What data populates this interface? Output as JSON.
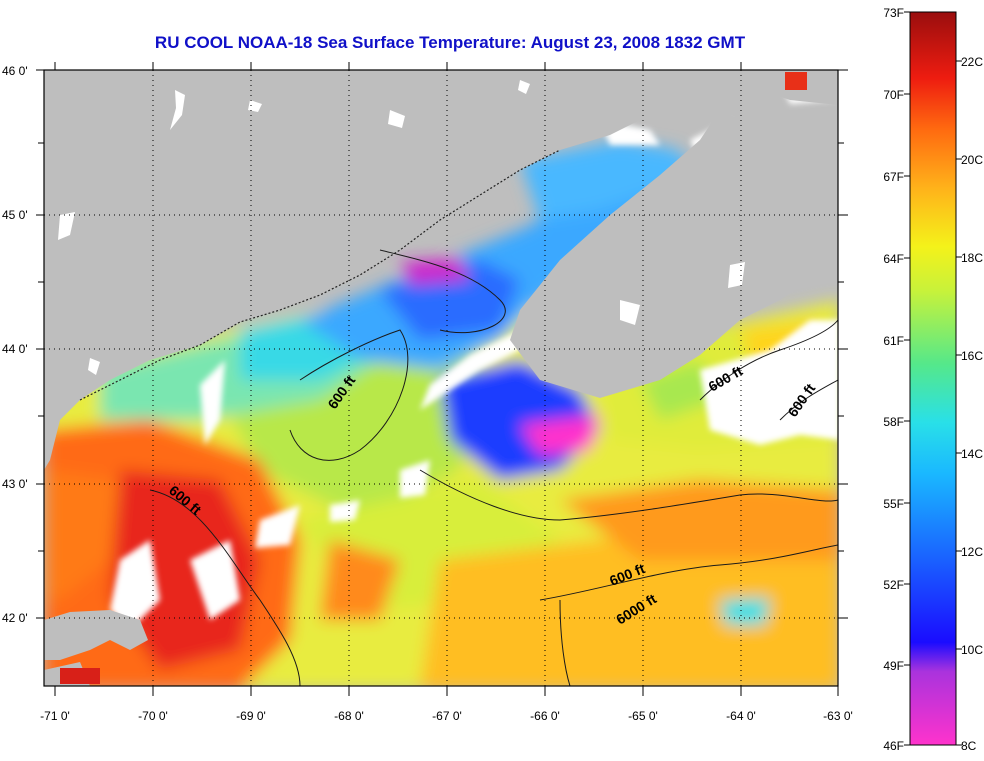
{
  "title": "RU COOL  NOAA-18  Sea Surface Temperature:  August 23, 2008 1832 GMT",
  "lat_labels": [
    "46 0'",
    "45 0'",
    "44 0'",
    "43 0'",
    "42 0'"
  ],
  "lon_labels": [
    "-71 0'",
    "-70 0'",
    "-69 0'",
    "-68 0'",
    "-67 0'",
    "-66 0'",
    "-65 0'",
    "-64 0'",
    "-63 0'"
  ],
  "contour_labels": [
    "600 ft",
    "600 ft",
    "600 ft",
    "600 ft",
    "600 ft",
    "6000 ft"
  ],
  "colorbar": {
    "fahrenheit": [
      "73F",
      "70F",
      "67F",
      "64F",
      "61F",
      "58F",
      "55F",
      "52F",
      "49F",
      "46F"
    ],
    "celsius": [
      "22C",
      "20C",
      "18C",
      "16C",
      "14C",
      "12C",
      "10C",
      "8C"
    ]
  },
  "colors": {
    "title": "#1010c8",
    "land": "#bebebe",
    "cloud": "#ffffff"
  }
}
